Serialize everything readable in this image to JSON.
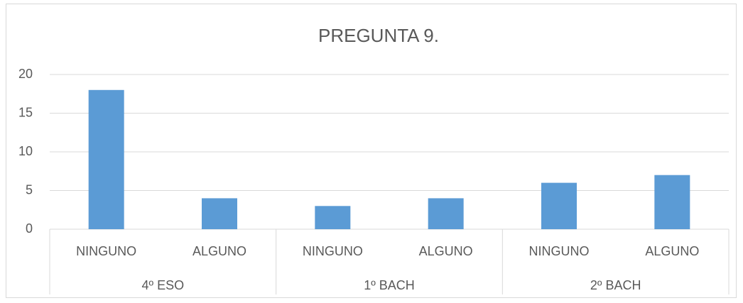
{
  "chart_data": {
    "type": "bar",
    "title": "PREGUNTA 9.",
    "categories": [
      "NINGUNO",
      "ALGUNO",
      "NINGUNO",
      "ALGUNO",
      "NINGUNO",
      "ALGUNO"
    ],
    "groups": [
      "4º ESO",
      "1º BACH",
      "2º BACH"
    ],
    "values": [
      18,
      4,
      3,
      4,
      6,
      7
    ],
    "color": "#5b9bd5",
    "ylim": [
      0,
      20
    ],
    "yticks": [
      0,
      5,
      10,
      15,
      20
    ],
    "grid": true
  }
}
